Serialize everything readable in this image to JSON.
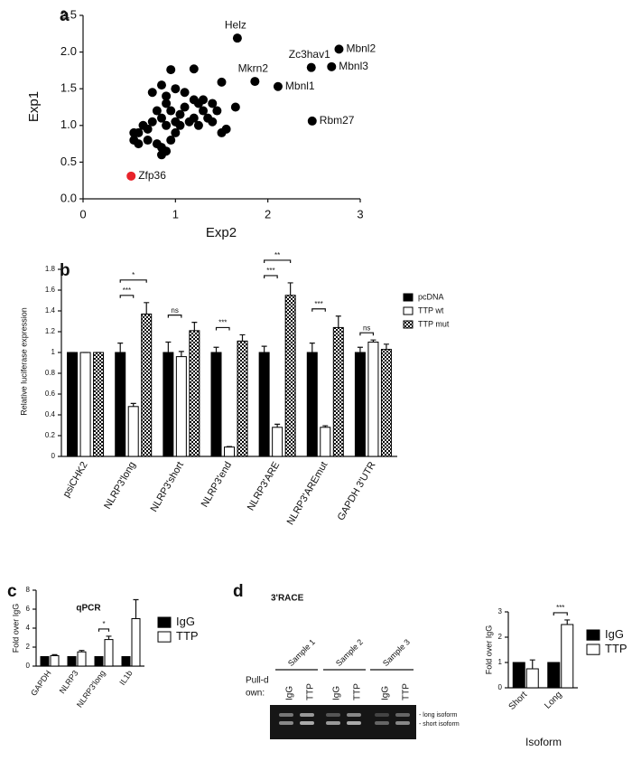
{
  "chart_data": [
    {
      "type": "scatter",
      "panel": "a",
      "xlabel": "Exp2",
      "ylabel": "Exp1",
      "xlim": [
        0,
        3
      ],
      "ylim": [
        0,
        2.5
      ],
      "xticks": [
        0,
        1,
        2,
        3
      ],
      "yticks": [
        {
          "value": 0,
          "label": "0.0"
        },
        0.5,
        {
          "value": 1,
          "label": "1.0"
        },
        1.5,
        {
          "value": 2,
          "label": "2.0"
        },
        2.5
      ],
      "series": [
        {
          "color": "#000000",
          "x": [
            1.67,
            2.77,
            2.47,
            2.69,
            1.86,
            2.11,
            2.48,
            0.95,
            1.2,
            1.5,
            1.65,
            0.75,
            0.85,
            0.9,
            1.0,
            1.1,
            1.2,
            1.25,
            1.3,
            1.4,
            1.45,
            1.35,
            1.3,
            1.2,
            1.1,
            1.05,
            0.95,
            0.9,
            0.85,
            0.8,
            0.75,
            0.7,
            0.65,
            0.6,
            0.55,
            0.55,
            0.6,
            0.7,
            0.8,
            0.85,
            0.85,
            0.9,
            0.95,
            1.0,
            1.05,
            1.15,
            1.25,
            1.4,
            1.5,
            1.55,
            1.0,
            0.9
          ],
          "y": [
            2.19,
            2.04,
            1.79,
            1.8,
            1.6,
            1.53,
            1.06,
            1.76,
            1.77,
            1.59,
            1.25,
            1.45,
            1.55,
            1.4,
            1.5,
            1.45,
            1.35,
            1.3,
            1.35,
            1.3,
            1.2,
            1.1,
            1.2,
            1.1,
            1.25,
            1.15,
            1.2,
            1.3,
            1.1,
            1.2,
            1.05,
            0.95,
            1.0,
            0.9,
            0.9,
            0.8,
            0.75,
            0.8,
            0.75,
            0.7,
            0.6,
            0.65,
            0.8,
            0.9,
            1.0,
            1.05,
            1.0,
            1.05,
            0.9,
            0.95,
            1.05,
            1.0
          ],
          "labels": [
            "Helz",
            "Mbnl2",
            "Zc3hav1",
            "Mbnl3",
            "Mkrn2",
            "Mbnl1",
            "Rbm27",
            null,
            null,
            null,
            null,
            null,
            null,
            null,
            null,
            null,
            null,
            null,
            null,
            null,
            null,
            null,
            null,
            null,
            null,
            null,
            null,
            null,
            null,
            null,
            null,
            null,
            null,
            null,
            null,
            null,
            null,
            null,
            null,
            null,
            null,
            null,
            null,
            null,
            null,
            null,
            null,
            null,
            null,
            null,
            null,
            null
          ]
        },
        {
          "color": "#e8232a",
          "x": [
            0.52
          ],
          "y": [
            0.31
          ],
          "labels": [
            "Zfp36"
          ]
        }
      ]
    },
    {
      "type": "bar",
      "panel": "b",
      "ylabel": "Relative luciferase expression",
      "categories": [
        "psiCHK2",
        "NLRP3'long",
        "NLRP3'short",
        "NLRP3'end",
        "NLRP3'ARE",
        "NLRP3'AREmut",
        "GAPDH 3'UTR"
      ],
      "ylim": [
        0,
        1.8
      ],
      "yticks": [
        0,
        0.2,
        0.4,
        0.6,
        0.8,
        1,
        1.2,
        1.4,
        1.6,
        1.8
      ],
      "series": [
        {
          "name": "pcDNA",
          "color": "#000000",
          "values": [
            1,
            1,
            1,
            1,
            1,
            1,
            1
          ],
          "errors": [
            0,
            0.09,
            0.1,
            0.05,
            0.06,
            0.09,
            0.05
          ]
        },
        {
          "name": "TTP wt",
          "color": "#ffffff",
          "values": [
            1,
            0.48,
            0.96,
            0.09,
            0.28,
            0.28,
            1.1
          ],
          "errors": [
            0,
            0.03,
            0.05,
            0.005,
            0.03,
            0.015,
            0.02
          ],
          "significance": [
            null,
            "***",
            "ns",
            "***",
            "***",
            "***",
            "ns"
          ]
        },
        {
          "name": "TTP mut",
          "color": "#000000",
          "pattern": "checker",
          "values": [
            1,
            1.37,
            1.21,
            1.11,
            1.55,
            1.24,
            1.03
          ],
          "errors": [
            0,
            0.11,
            0.08,
            0.06,
            0.12,
            0.11,
            0.05
          ],
          "significance": [
            null,
            "*",
            null,
            null,
            "**",
            null,
            null
          ]
        }
      ]
    },
    {
      "type": "bar",
      "panel": "c",
      "title": "qPCR",
      "ylabel": "Fold over IgG",
      "categories": [
        "GAPDH",
        "NLRP3",
        "NLRP3'long",
        "IL1b"
      ],
      "ylim": [
        0,
        8
      ],
      "yticks": [
        0,
        2,
        4,
        6,
        8
      ],
      "series": [
        {
          "name": "IgG",
          "color": "#000000",
          "values": [
            1,
            1,
            1,
            1
          ]
        },
        {
          "name": "TTP",
          "color": "#ffffff",
          "values": [
            1.1,
            1.5,
            2.8,
            5.0
          ],
          "errors": [
            0.1,
            0.15,
            0.35,
            2.0
          ],
          "significance": [
            null,
            null,
            "*",
            null
          ]
        }
      ]
    },
    {
      "type": "bar",
      "ylabel": "Fold over IgG",
      "xlabel": "Isoform",
      "categories": [
        "Short",
        "Long"
      ],
      "ylim": [
        0,
        3
      ],
      "yticks": [
        0,
        1,
        2,
        3
      ],
      "series": [
        {
          "name": "IgG",
          "color": "#000000",
          "values": [
            1,
            1
          ]
        },
        {
          "name": "TTP",
          "color": "#ffffff",
          "values": [
            0.75,
            2.5
          ],
          "errors": [
            0.35,
            0.18
          ],
          "significance": [
            null,
            "***"
          ]
        }
      ]
    }
  ],
  "gel": {
    "panel": "d",
    "title": "3'RACE",
    "samples": [
      "Sample 1",
      "Sample 2",
      "Sample 3"
    ],
    "row_label": [
      "Pull-d",
      "own:"
    ],
    "lanes": [
      "IgG",
      "TTP",
      "IgG",
      "TTP",
      "IgG",
      "TTP"
    ],
    "band_labels": [
      "- long isoform",
      "- short isoform"
    ]
  }
}
